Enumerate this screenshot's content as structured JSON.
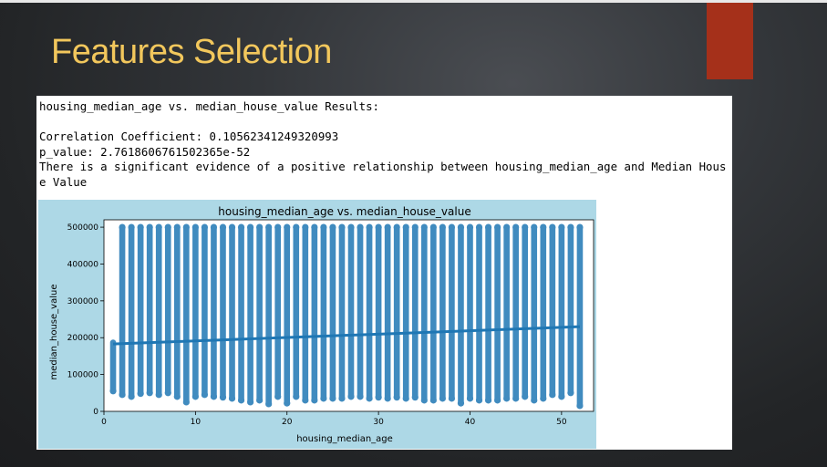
{
  "slide": {
    "title": "Features Selection"
  },
  "output": {
    "header": "housing_median_age vs. median_house_value Results:",
    "correlation": "Correlation Coefficient: 0.10562341249320993",
    "p_value": "p_value: 2.7618606761502365e-52",
    "conclusion_line1": "There is a significant evidence of a positive relationship between housing_median_age and Median Hous",
    "conclusion_line2": "e Value"
  },
  "colors": {
    "title": "#f2c75c",
    "accent_bar": "#a5301a",
    "chart_background": "#add8e6",
    "point": "#1f77b4"
  },
  "chart_data": {
    "type": "scatter",
    "title": "housing_median_age vs. median_house_value",
    "xlabel": "housing_median_age",
    "ylabel": "median_house_value",
    "xlim": [
      0,
      53.5
    ],
    "ylim": [
      0,
      520000
    ],
    "xticks": [
      0,
      10,
      20,
      30,
      40,
      50
    ],
    "xtick_labels": [
      "0",
      "10",
      "20",
      "30",
      "40",
      "50"
    ],
    "yticks": [
      0,
      100000,
      200000,
      300000,
      400000,
      500000
    ],
    "ytick_labels": [
      "0",
      "100000",
      "200000",
      "300000",
      "400000",
      "500000"
    ],
    "grid": false,
    "series": [
      {
        "type": "vertical-range",
        "x": [
          1,
          2,
          3,
          4,
          5,
          6,
          7,
          8,
          9,
          10,
          11,
          12,
          13,
          14,
          15,
          16,
          17,
          18,
          19,
          20,
          21,
          22,
          23,
          24,
          25,
          26,
          27,
          28,
          29,
          30,
          31,
          32,
          33,
          34,
          35,
          36,
          37,
          38,
          39,
          40,
          41,
          42,
          43,
          44,
          45,
          46,
          47,
          48,
          49,
          50,
          51,
          52
        ],
        "ymin": [
          55000,
          45000,
          40000,
          48000,
          50000,
          45000,
          50000,
          40000,
          25000,
          40000,
          45000,
          40000,
          38000,
          35000,
          30000,
          25000,
          30000,
          20000,
          40000,
          22000,
          40000,
          30000,
          30000,
          35000,
          35000,
          35000,
          40000,
          40000,
          35000,
          38000,
          35000,
          38000,
          35000,
          38000,
          30000,
          30000,
          35000,
          35000,
          22000,
          35000,
          30000,
          30000,
          30000,
          35000,
          35000,
          40000,
          30000,
          35000,
          45000,
          40000,
          50000,
          15000
        ],
        "ymax": [
          190000,
          500001,
          500001,
          500001,
          500001,
          500001,
          500001,
          500001,
          500001,
          500001,
          500001,
          500001,
          500001,
          500001,
          500001,
          500001,
          500001,
          500001,
          500001,
          500001,
          500001,
          500001,
          500001,
          500001,
          500001,
          500001,
          500001,
          500001,
          500001,
          500001,
          500001,
          500001,
          500001,
          500001,
          500001,
          500001,
          500001,
          500001,
          500001,
          500001,
          500001,
          500001,
          500001,
          500001,
          500001,
          500001,
          500001,
          500001,
          500001,
          500001,
          500001,
          500001
        ]
      },
      {
        "type": "regression-line",
        "x": [
          1,
          52
        ],
        "y": [
          183000,
          230000
        ]
      }
    ]
  }
}
